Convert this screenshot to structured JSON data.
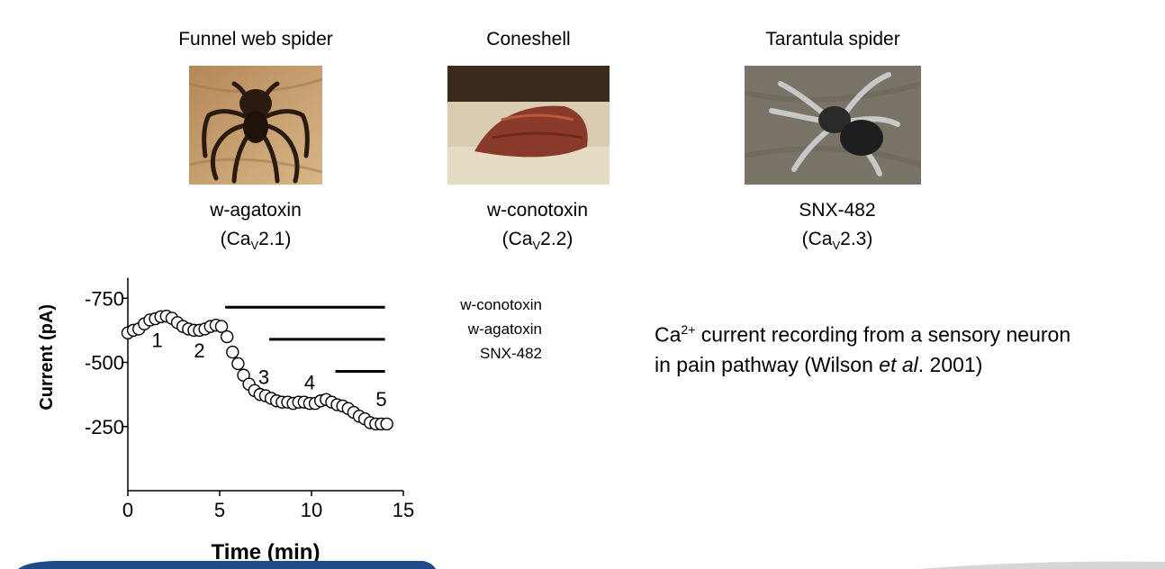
{
  "species": [
    {
      "name": "Funnel web spider",
      "toxin": "w-agatoxin",
      "channel_prefix": "(Ca",
      "channel_sub": "V",
      "channel_suffix": "2.1)"
    },
    {
      "name": "Coneshell",
      "toxin": "w-conotoxin",
      "channel_prefix": "(Ca",
      "channel_sub": "V",
      "channel_suffix": "2.2)"
    },
    {
      "name": "Tarantula spider",
      "toxin": "SNX-482",
      "channel_prefix": "(Ca",
      "channel_sub": "V",
      "channel_suffix": "2.3)"
    }
  ],
  "legend": [
    "w-conotoxin",
    "w-agatoxin",
    "SNX-482"
  ],
  "caption": {
    "line1_pre": "Ca",
    "line1_sup": "2+",
    "line1_post": " current recording from a sensory neuron",
    "line2_pre": "in pain pathway (Wilson ",
    "line2_em": "et al",
    "line2_post": ". 2001)"
  },
  "chart_data": {
    "type": "scatter",
    "xlabel": "Time (min)",
    "ylabel": "Current (pA)",
    "xlim": [
      0,
      15
    ],
    "ylim": [
      0,
      -850
    ],
    "xticks": [
      0,
      5,
      10,
      15
    ],
    "yticks": [
      -750,
      -500,
      -250
    ],
    "ytick_labels": [
      "-750",
      "-500",
      "-250"
    ],
    "series": [
      {
        "marker": "open-circle",
        "x": [
          0.0,
          0.3,
          0.6,
          0.9,
          1.2,
          1.5,
          1.8,
          2.1,
          2.4,
          2.7,
          3.0,
          3.3,
          3.6,
          3.9,
          4.2,
          4.5,
          4.8,
          5.1,
          5.4,
          5.7,
          6.0,
          6.3,
          6.6,
          6.9,
          7.2,
          7.5,
          7.8,
          8.1,
          8.4,
          8.7,
          9.0,
          9.3,
          9.6,
          9.9,
          10.2,
          10.5,
          10.8,
          11.1,
          11.4,
          11.7,
          12.0,
          12.3,
          12.6,
          12.9,
          13.2,
          13.5,
          13.8,
          14.1
        ],
        "y": [
          -615,
          -625,
          -630,
          -650,
          -665,
          -670,
          -678,
          -680,
          -672,
          -655,
          -640,
          -630,
          -625,
          -625,
          -630,
          -640,
          -645,
          -640,
          -600,
          -540,
          -495,
          -450,
          -415,
          -390,
          -375,
          -370,
          -360,
          -350,
          -345,
          -345,
          -340,
          -345,
          -345,
          -340,
          -340,
          -350,
          -355,
          -345,
          -335,
          -330,
          -320,
          -305,
          -290,
          -280,
          -265,
          -260,
          -260,
          -260
        ]
      }
    ],
    "point_labels": [
      {
        "text": "1",
        "x": 1.6,
        "y": -560
      },
      {
        "text": "2",
        "x": 3.9,
        "y": -520
      },
      {
        "text": "3",
        "x": 7.4,
        "y": -415
      },
      {
        "text": "4",
        "x": 9.9,
        "y": -395
      },
      {
        "text": "5",
        "x": 13.8,
        "y": -330
      }
    ],
    "bars": [
      {
        "name": "w-conotoxin",
        "x_start": 5.3,
        "x_end": 14.0,
        "y": -715
      },
      {
        "name": "w-agatoxin",
        "x_start": 7.7,
        "x_end": 14.0,
        "y": -590
      },
      {
        "name": "SNX-482",
        "x_start": 11.3,
        "x_end": 14.0,
        "y": -465
      }
    ]
  }
}
